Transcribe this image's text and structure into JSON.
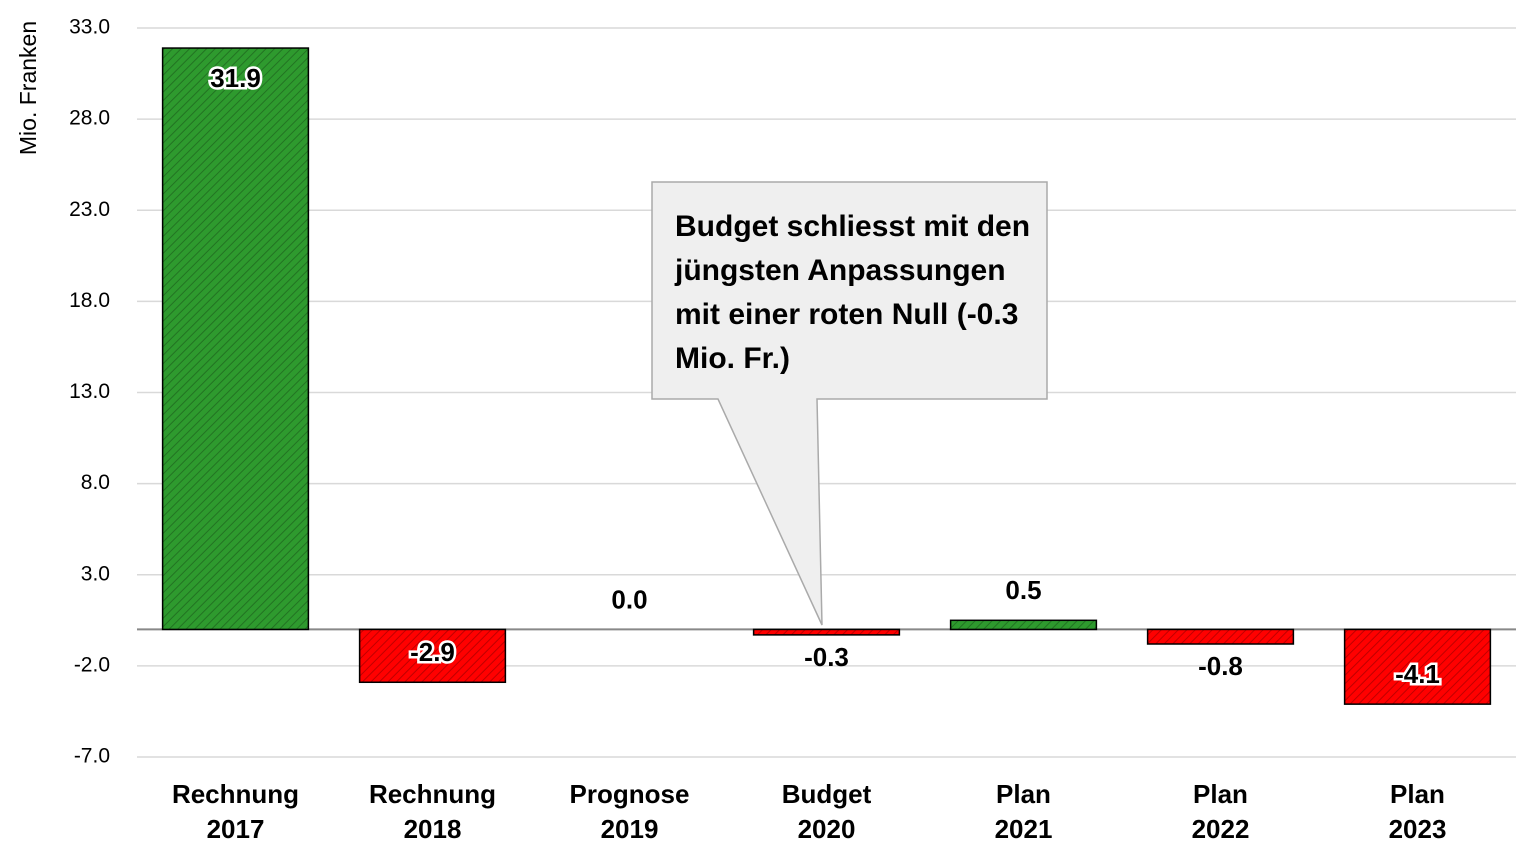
{
  "chart_data": {
    "type": "bar",
    "y_label": "Mio. Franken",
    "categories": [
      "Rechnung 2017",
      "Rechnung 2018",
      "Prognose 2019",
      "Budget 2020",
      "Plan 2021",
      "Plan 2022",
      "Plan 2023"
    ],
    "values": [
      31.9,
      -2.9,
      0,
      -0.3,
      0.5,
      -0.8,
      -4.1
    ],
    "value_labels": [
      "31.9",
      "-2.9",
      "0.0",
      "-0.3",
      "0.5",
      "-0.8",
      "-4.1"
    ],
    "positive_color": "#2e9a2e",
    "negative_color": "#ff0000",
    "ylim": [
      -7,
      33
    ],
    "yticks": [
      {
        "value": -7,
        "label": "-7.0"
      },
      {
        "value": -2,
        "label": "-2.0"
      },
      {
        "value": 3,
        "label": "3.0"
      },
      {
        "value": 8,
        "label": "8.0"
      },
      {
        "value": 13,
        "label": "13.0"
      },
      {
        "value": 18,
        "label": "18.0"
      },
      {
        "value": 23,
        "label": "23.0"
      },
      {
        "value": 28,
        "label": "28.0"
      },
      {
        "value": 33,
        "label": "33.0"
      }
    ],
    "grid": true,
    "annotation": "Budget schliesst mit den jüngsten Anpassungen mit einer roten Null (-0.3 Mio. Fr.)"
  }
}
